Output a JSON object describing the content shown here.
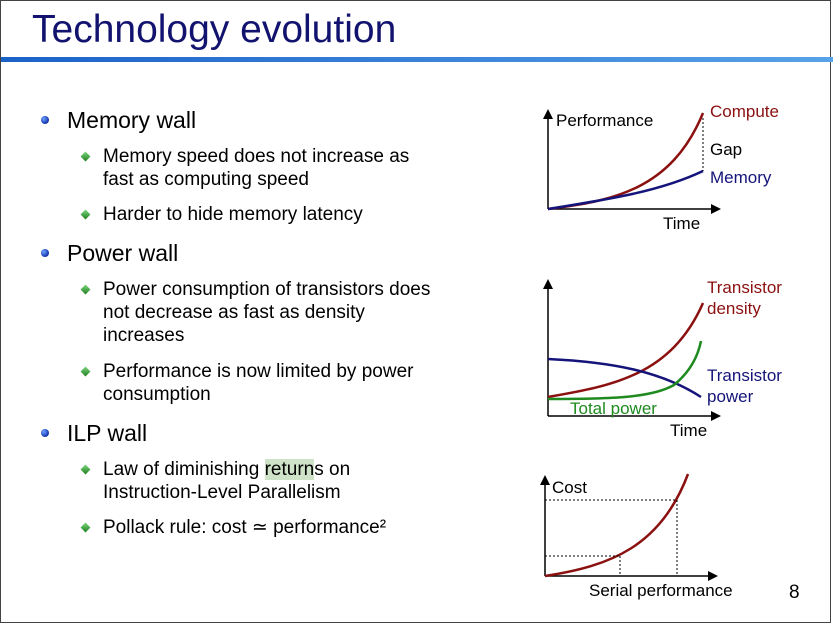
{
  "slide": {
    "title": "Technology evolution",
    "page_number": "8"
  },
  "bullets": [
    {
      "label": "Memory wall",
      "subs": [
        {
          "line1": "Memory speed does not increase as",
          "line2": "fast as computing speed"
        },
        {
          "line1": "Harder to hide memory latency"
        }
      ]
    },
    {
      "label": "Power wall",
      "subs": [
        {
          "line1": "Power consumption of transistors does",
          "line2": "not decrease as fast as density",
          "line3": "increases"
        },
        {
          "line1": "Performance is now limited by power",
          "line2": "consumption"
        }
      ]
    },
    {
      "label": "ILP wall",
      "subs": [
        {
          "line1_pre": "Law of diminishing ",
          "line1_hl": "return",
          "line1_post": "s on",
          "line2": "Instruction-Level Parallelism"
        },
        {
          "line1": "Pollack rule: cost ≃ performance²"
        }
      ]
    }
  ],
  "colors": {
    "title": "#12126f",
    "compute": "#8b1010",
    "memory": "#14147a",
    "total_power": "#1f8a1f",
    "highlight": "#cfe3c8"
  },
  "chart_data": [
    {
      "type": "line",
      "title": "",
      "ylabel": "Performance",
      "xlabel": "Time",
      "series": [
        {
          "name": "Compute",
          "shape": "exponential growth"
        },
        {
          "name": "Memory",
          "shape": "slow linear growth"
        }
      ],
      "annotations": [
        "Gap"
      ]
    },
    {
      "type": "line",
      "title": "",
      "ylabel": "",
      "xlabel": "Time",
      "series": [
        {
          "name": "Transistor density",
          "label_line1": "Transistor",
          "label_line2": "density",
          "shape": "exponential growth"
        },
        {
          "name": "Transistor power",
          "label_line1": "Transistor",
          "label_line2": "power",
          "shape": "decreasing"
        },
        {
          "name": "Total power",
          "shape": "flat then rising"
        }
      ]
    },
    {
      "type": "line",
      "title": "",
      "ylabel": "Cost",
      "xlabel": "Serial performance",
      "series": [
        {
          "name": "Cost",
          "shape": "quadratic growth (cost ≃ performance²)"
        }
      ]
    }
  ]
}
